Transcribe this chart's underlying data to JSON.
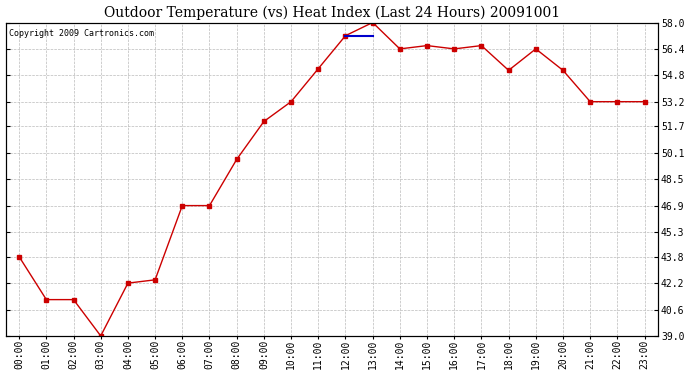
{
  "title": "Outdoor Temperature (vs) Heat Index (Last 24 Hours) 20091001",
  "copyright_text": "Copyright 2009 Cartronics.com",
  "hours": [
    "00:00",
    "01:00",
    "02:00",
    "03:00",
    "04:00",
    "05:00",
    "06:00",
    "07:00",
    "08:00",
    "09:00",
    "10:00",
    "11:00",
    "12:00",
    "13:00",
    "14:00",
    "15:00",
    "16:00",
    "17:00",
    "18:00",
    "19:00",
    "20:00",
    "21:00",
    "22:00",
    "23:00"
  ],
  "temp": [
    43.8,
    41.2,
    41.2,
    39.0,
    42.2,
    42.4,
    46.9,
    46.9,
    49.7,
    52.0,
    53.2,
    55.2,
    57.2,
    58.0,
    56.4,
    56.6,
    56.4,
    56.6,
    55.1,
    56.4,
    55.1,
    53.2,
    53.2,
    53.2
  ],
  "heat_index": [
    null,
    null,
    null,
    null,
    null,
    null,
    null,
    null,
    null,
    null,
    null,
    null,
    57.2,
    57.2,
    null,
    null,
    null,
    null,
    null,
    null,
    null,
    null,
    null,
    null
  ],
  "temp_color": "#cc0000",
  "heat_index_color": "#0000cc",
  "bg_color": "#ffffff",
  "plot_bg_color": "#ffffff",
  "grid_color": "#bbbbbb",
  "title_fontsize": 10,
  "copyright_fontsize": 6,
  "tick_fontsize": 7,
  "ylim_min": 39.0,
  "ylim_max": 58.0,
  "yticks": [
    39.0,
    40.6,
    42.2,
    43.8,
    45.3,
    46.9,
    48.5,
    50.1,
    51.7,
    53.2,
    54.8,
    56.4,
    58.0
  ]
}
